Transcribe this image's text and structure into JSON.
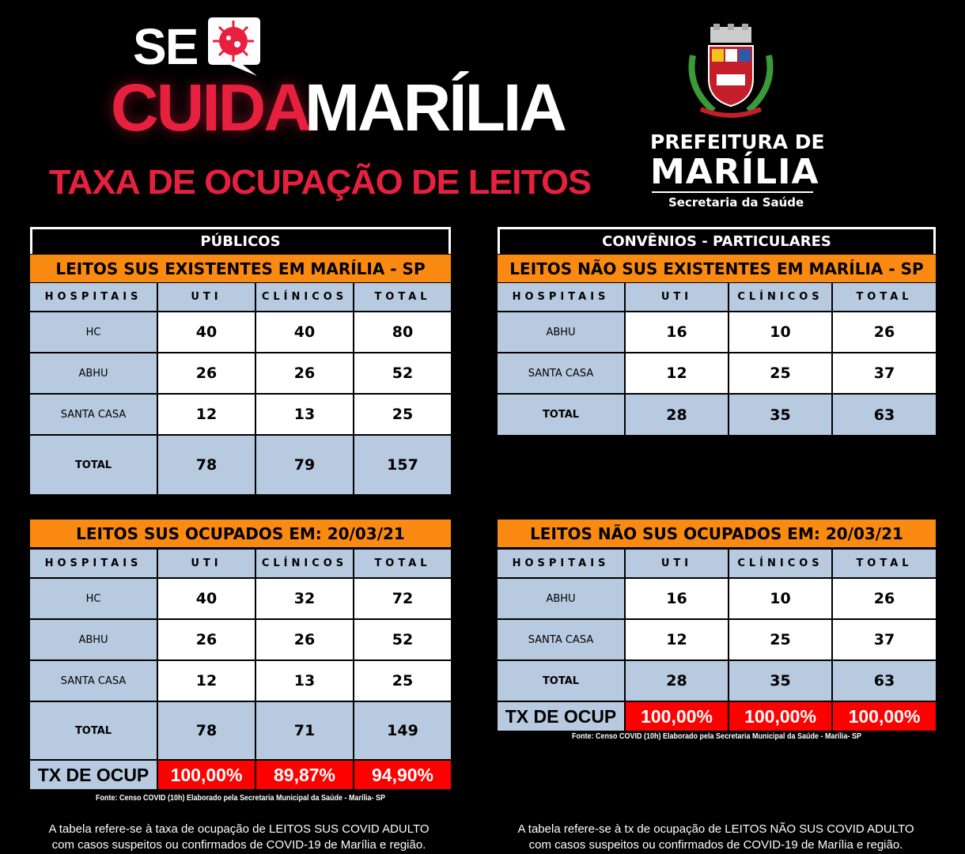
{
  "brand": {
    "se": "SE",
    "cuida": "CUIDA",
    "marilia": "MARÍLIA",
    "subtitle": "TAXA  DE OCUPAÇÃO DE LEITOS",
    "virus_icon": "virus-in-speech-bubble-icon"
  },
  "prefeitura": {
    "line1": "PREFEITURA DE",
    "line2": "MARÍLIA",
    "line3": "Secretaria da Saúde",
    "crest_icon": "city-coat-of-arms"
  },
  "colors": {
    "orange": "#fb8a12",
    "blue": "#b8cadf",
    "red": "#ff0000",
    "brand_red": "#e8203f"
  },
  "headers": [
    "HOSPITAIS",
    "UTI",
    "CLÍNICOS",
    "TOTAL"
  ],
  "publicos": {
    "section": "PÚBLICOS",
    "existentes": {
      "title": "LEITOS SUS EXISTENTES EM MARÍLIA - SP",
      "rows": [
        [
          "HC",
          "40",
          "40",
          "80"
        ],
        [
          "ABHU",
          "26",
          "26",
          "52"
        ],
        [
          "SANTA CASA",
          "12",
          "13",
          "25"
        ],
        [
          "TOTAL",
          "78",
          "79",
          "157"
        ]
      ]
    },
    "ocupados": {
      "title": "LEITOS SUS OCUPADOS EM:   20/03/21",
      "rows": [
        [
          "HC",
          "40",
          "32",
          "72"
        ],
        [
          "ABHU",
          "26",
          "26",
          "52"
        ],
        [
          "SANTA CASA",
          "12",
          "13",
          "25"
        ],
        [
          "TOTAL",
          "78",
          "71",
          "149"
        ]
      ],
      "tx": [
        "TX DE OCUP",
        "100,00%",
        "89,87%",
        "94,90%"
      ]
    },
    "fonte": "Fonte: Censo COVID (10h) Elaborado pela Secretaria Municipal da Saúde - Marília- SP",
    "note1": "A tabela refere-se à taxa de ocupação de LEITOS SUS COVID ADULTO",
    "note2": "com casos suspeitos ou confirmados de COVID-19 de Marília e região."
  },
  "particulares": {
    "section": "CONVÊNIOS - PARTICULARES",
    "existentes": {
      "title": "LEITOS NÃO SUS EXISTENTES EM MARÍLIA - SP",
      "rows": [
        [
          "ABHU",
          "16",
          "10",
          "26"
        ],
        [
          "SANTA CASA",
          "12",
          "25",
          "37"
        ],
        [
          "TOTAL",
          "28",
          "35",
          "63"
        ]
      ]
    },
    "ocupados": {
      "title": "LEITOS NÃO SUS OCUPADOS EM:   20/03/21",
      "rows": [
        [
          "ABHU",
          "16",
          "10",
          "26"
        ],
        [
          "SANTA CASA",
          "12",
          "25",
          "37"
        ],
        [
          "TOTAL",
          "28",
          "35",
          "63"
        ]
      ],
      "tx": [
        "TX DE OCUP",
        "100,00%",
        "100,00%",
        "100,00%"
      ]
    },
    "fonte": "Fonte: Censo COVID (10h) Elaborado pela Secretaria Municipal da Saúde - Marília- SP",
    "note1": "A tabela refere-se à tx de ocupação de LEITOS NÃO SUS COVID ADULTO",
    "note2": "com casos suspeitos ou confirmados de COVID-19 de Marília e região."
  }
}
